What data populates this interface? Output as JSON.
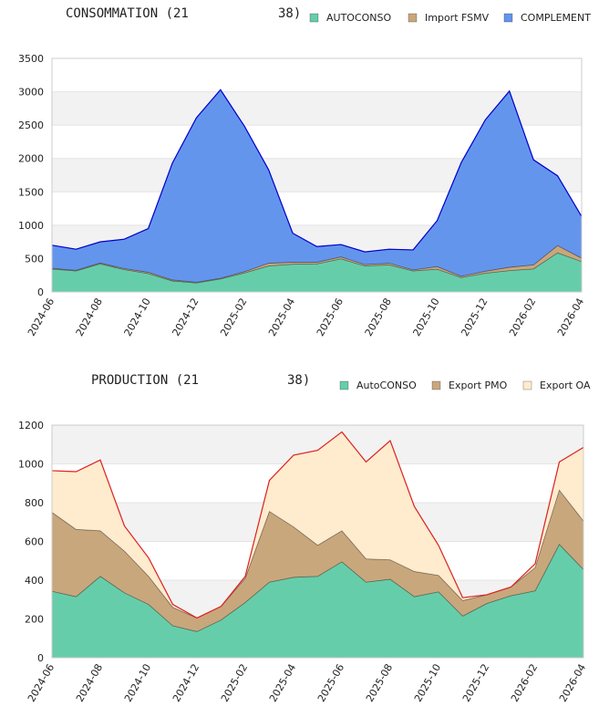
{
  "chart_data": [
    {
      "type": "area",
      "stacked": true,
      "title_parts": [
        "CONSOMMATION (21",
        "38)"
      ],
      "categories": [
        "2024-06",
        null,
        "2024-08",
        null,
        "2024-10",
        null,
        "2024-12",
        null,
        "2025-02",
        null,
        "2025-04",
        null,
        "2025-06",
        null,
        "2025-08",
        null,
        "2025-10",
        null,
        "2025-12",
        null,
        "2026-02",
        null,
        "2026-04"
      ],
      "series": [
        {
          "name": "AUTOCONSO",
          "color": "#66cdaa",
          "values": [
            343,
            315,
            420,
            335,
            275,
            165,
            135,
            195,
            285,
            390,
            415,
            420,
            495,
            390,
            405,
            315,
            340,
            215,
            280,
            320,
            345,
            585,
            455
          ]
        },
        {
          "name": "Import FSMV",
          "color": "#c9a77c",
          "values": [
            10,
            10,
            15,
            15,
            20,
            15,
            10,
            10,
            20,
            40,
            30,
            25,
            30,
            20,
            25,
            15,
            40,
            20,
            30,
            50,
            60,
            110,
            50
          ]
        },
        {
          "name": "COMPLEMENT",
          "color": "#6495ed",
          "values": [
            347,
            315,
            315,
            440,
            655,
            1750,
            2465,
            2825,
            2175,
            1400,
            435,
            235,
            185,
            190,
            210,
            300,
            690,
            1705,
            2270,
            2640,
            1575,
            1045,
            625
          ]
        }
      ],
      "outline_color": "#0000cd",
      "ylim": [
        0,
        3500
      ],
      "yticks": [
        0,
        500,
        1000,
        1500,
        2000,
        2500,
        3000,
        3500
      ],
      "grid": true,
      "legend": "top-right"
    },
    {
      "type": "area",
      "stacked": true,
      "title_parts": [
        "PRODUCTION (21",
        "38)"
      ],
      "categories": [
        "2024-06",
        null,
        "2024-08",
        null,
        "2024-10",
        null,
        "2024-12",
        null,
        "2025-02",
        null,
        "2025-04",
        null,
        "2025-06",
        null,
        "2025-08",
        null,
        "2025-10",
        null,
        "2025-12",
        null,
        "2026-02",
        null,
        "2026-04"
      ],
      "series": [
        {
          "name": "AutoCONSO",
          "color": "#66cdaa",
          "values": [
            343,
            315,
            420,
            335,
            275,
            165,
            135,
            195,
            285,
            390,
            415,
            420,
            495,
            390,
            405,
            315,
            340,
            215,
            280,
            320,
            345,
            585,
            455
          ]
        },
        {
          "name": "Export PMO",
          "color": "#c9a77c",
          "values": [
            407,
            347,
            235,
            215,
            145,
            95,
            70,
            70,
            125,
            365,
            260,
            160,
            160,
            120,
            100,
            130,
            85,
            80,
            45,
            45,
            120,
            280,
            250
          ]
        },
        {
          "name": "Export OA",
          "color": "#ffebcd",
          "values": [
            215,
            298,
            365,
            130,
            95,
            15,
            0,
            0,
            10,
            160,
            370,
            490,
            510,
            500,
            615,
            335,
            155,
            15,
            0,
            0,
            20,
            145,
            380
          ]
        }
      ],
      "outline_color": "#dd2222",
      "ylim": [
        0,
        1200
      ],
      "yticks": [
        0,
        200,
        400,
        600,
        800,
        1000,
        1200
      ],
      "grid": true,
      "legend": "top-right"
    }
  ]
}
